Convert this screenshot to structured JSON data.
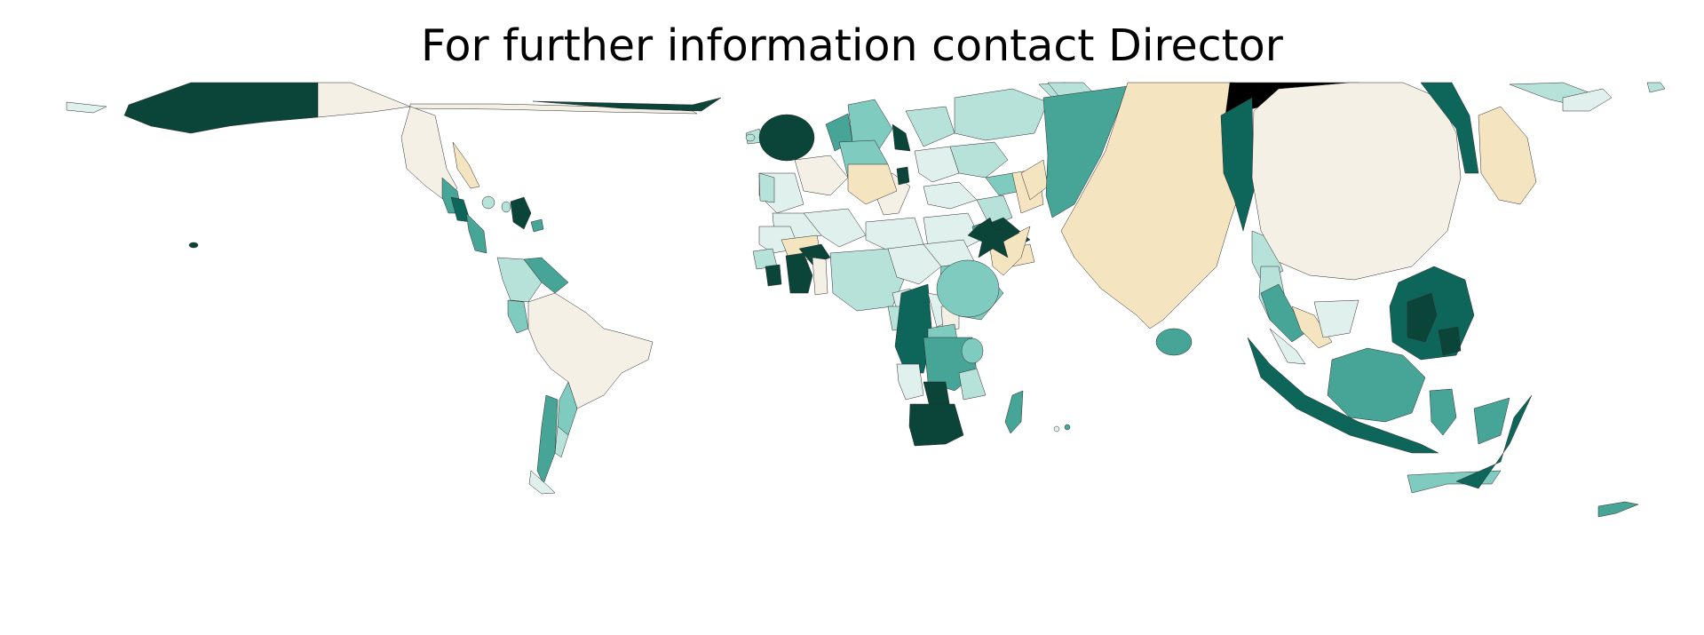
{
  "map": {
    "title": "For further information contact Director",
    "colors": {
      "background": "#ffffff",
      "border": "#2b2b2b",
      "palette": [
        "#f5f0e6",
        "#f5e4c0",
        "#e0f0ed",
        "#b6e2da",
        "#80cbbf",
        "#47a597",
        "#0e665a",
        "#0b453a",
        "#000000"
      ]
    }
  }
}
